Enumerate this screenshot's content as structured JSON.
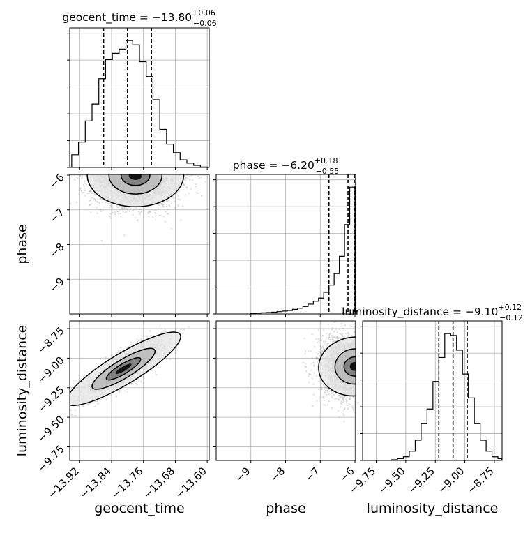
{
  "chart_data": {
    "type": "corner",
    "parameters": [
      "geocent_time",
      "phase",
      "luminosity_distance"
    ],
    "titles": [
      {
        "name": "geocent_time",
        "median": "−13.80",
        "plus": "+0.06",
        "minus": "−0.06"
      },
      {
        "name": "phase",
        "median": "−6.20",
        "plus": "+0.18",
        "minus": "−0.55"
      },
      {
        "name": "luminosity_distance",
        "median": "−9.10",
        "plus": "+0.12",
        "minus": "−0.12"
      }
    ],
    "axes": {
      "geocent_time": {
        "range": [
          -13.945,
          -13.595
        ],
        "ticks": [
          -13.92,
          -13.84,
          -13.76,
          -13.68,
          -13.6
        ],
        "tick_labels": [
          "−13.92",
          "−13.84",
          "−13.76",
          "−13.68",
          "−13.60"
        ]
      },
      "phase": {
        "range": [
          -10.0,
          -5.98
        ],
        "ticks": [
          -9,
          -8,
          -7,
          -6
        ],
        "tick_labels": [
          "−9",
          "−8",
          "−7",
          "−6"
        ]
      },
      "luminosity_distance": {
        "range": [
          -9.865,
          -8.685
        ],
        "ticks": [
          -9.75,
          -9.5,
          -9.25,
          -9.0,
          -8.75
        ],
        "tick_labels": [
          "−9.75",
          "−9.50",
          "−9.25",
          "−9.00",
          "−8.75"
        ]
      }
    },
    "histograms": {
      "geocent_time": {
        "edges": [
          -13.94,
          -13.923,
          -13.906,
          -13.889,
          -13.872,
          -13.855,
          -13.838,
          -13.821,
          -13.804,
          -13.787,
          -13.77,
          -13.753,
          -13.736,
          -13.719,
          -13.702,
          -13.685,
          -13.668,
          -13.651,
          -13.634,
          -13.617,
          -13.6
        ],
        "counts": [
          30,
          60,
          110,
          150,
          210,
          255,
          270,
          280,
          300,
          290,
          250,
          215,
          160,
          90,
          55,
          35,
          18,
          10,
          5,
          1
        ],
        "quantiles": [
          -13.86,
          -13.8,
          -13.74
        ]
      },
      "phase": {
        "edges": [
          -9.0,
          -8.85,
          -8.7,
          -8.55,
          -8.4,
          -8.25,
          -8.1,
          -7.95,
          -7.8,
          -7.65,
          -7.5,
          -7.35,
          -7.2,
          -7.05,
          -6.9,
          -6.75,
          -6.6,
          -6.45,
          -6.3,
          -6.15,
          -6.0
        ],
        "counts": [
          2,
          3,
          4,
          5,
          6,
          8,
          10,
          12,
          16,
          20,
          26,
          34,
          44,
          55,
          75,
          100,
          140,
          200,
          310,
          440
        ],
        "quantiles": [
          -6.75,
          -6.2,
          -6.02
        ]
      },
      "luminosity_distance": {
        "edges": [
          -9.62,
          -9.57,
          -9.52,
          -9.47,
          -9.42,
          -9.37,
          -9.32,
          -9.27,
          -9.22,
          -9.17,
          -9.12,
          -9.07,
          -9.02,
          -8.97,
          -8.92,
          -8.87,
          -8.82,
          -8.77,
          -8.72,
          -8.69
        ],
        "counts": [
          2,
          5,
          10,
          25,
          55,
          100,
          140,
          215,
          280,
          345,
          340,
          300,
          235,
          170,
          100,
          55,
          25,
          10,
          5
        ],
        "quantiles": [
          -9.22,
          -9.1,
          -8.98
        ]
      }
    },
    "density_2d": {
      "geocent_time__phase": {
        "center": [
          -13.78,
          -6.0
        ],
        "spread": [
          0.055,
          0.45
        ],
        "correlation": 0.0
      },
      "geocent_time__luminosity_distance": {
        "center": [
          -13.81,
          -9.09
        ],
        "spread": [
          0.05,
          0.12
        ],
        "correlation": 0.85
      },
      "phase__luminosity_distance": {
        "center": [
          -6.0,
          -9.07
        ],
        "spread": [
          0.45,
          0.13
        ],
        "correlation": 0.1
      }
    },
    "colors": {
      "line": "#000000",
      "grid": "#b0b0b0",
      "scatter": "#9a9a9a"
    },
    "grid": true
  }
}
